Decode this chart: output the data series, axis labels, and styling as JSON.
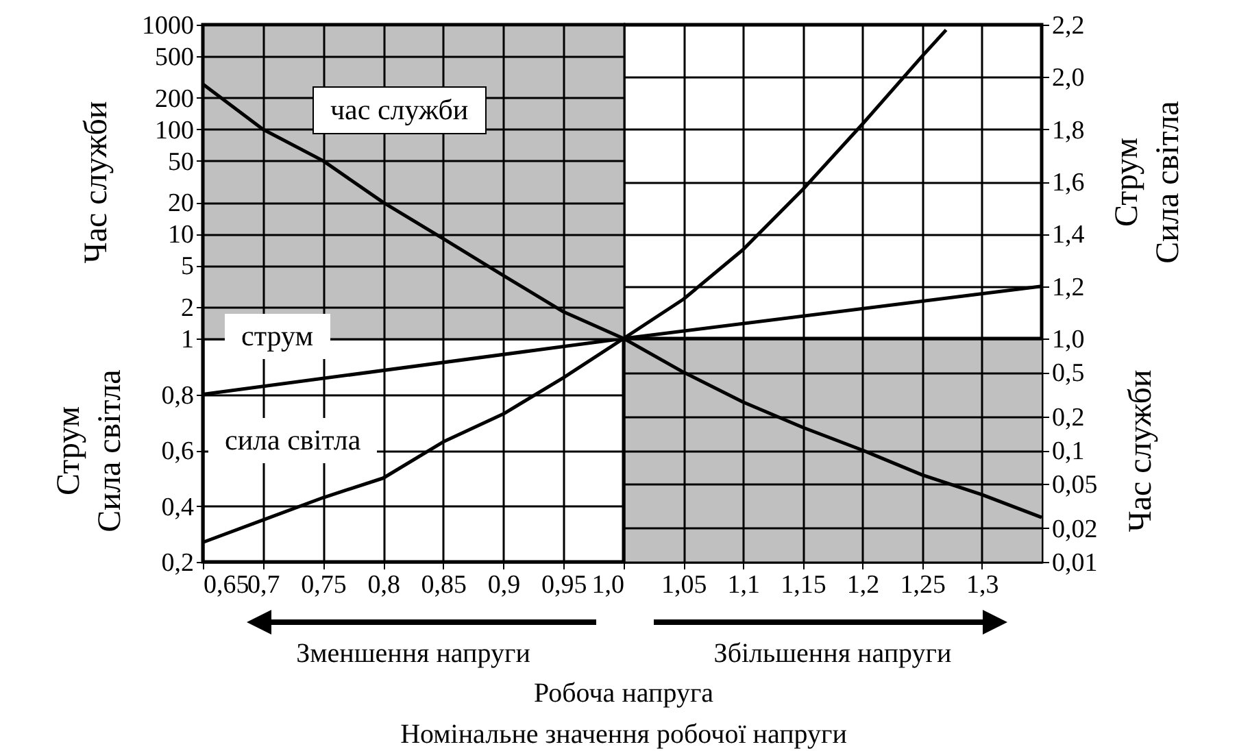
{
  "chart_data": [
    {
      "type": "line",
      "ylabel": "Час служби",
      "xlim": [
        0.65,
        1.0
      ],
      "xticks": [
        0.65,
        0.7,
        0.75,
        0.8,
        0.85,
        0.9,
        0.95,
        1.0
      ],
      "log": "y",
      "ylim": [
        1,
        1000
      ],
      "yticks": [
        1,
        2,
        5,
        10,
        20,
        50,
        100,
        200,
        500,
        1000
      ],
      "grid": true,
      "legend": false,
      "tick_labels": "y",
      "bands": [
        {
          "axis": "x",
          "from": 0.65,
          "to": 1.0,
          "color": "#c0c0c0"
        }
      ],
      "series": [
        {
          "name": "час служби",
          "color": "#000000",
          "x": [
            0.65,
            0.7,
            0.75,
            0.8,
            0.85,
            0.9,
            0.95,
            1.0
          ],
          "values": [
            270,
            100,
            50,
            20,
            9,
            4,
            1.8,
            1
          ]
        }
      ]
    },
    {
      "type": "line",
      "ylabel": "Струм\nСила світла",
      "xlim": [
        1.0,
        1.35
      ],
      "xticks": [
        1.05,
        1.1,
        1.15,
        1.2,
        1.25,
        1.3
      ],
      "ylim": [
        1.0,
        2.2
      ],
      "yticks": [
        {
          "value": 1.0,
          "label": "1,0"
        },
        {
          "value": 1.2,
          "label": "1,2"
        },
        {
          "value": 1.4,
          "label": "1,4"
        },
        {
          "value": 1.6,
          "label": "1,6"
        },
        {
          "value": 1.8,
          "label": "1,8"
        },
        {
          "value": 2.0,
          "label": "2,0"
        },
        {
          "value": 2.2,
          "label": "2,2"
        }
      ],
      "grid": true,
      "legend": false,
      "tick_labels": "y",
      "series": [
        {
          "color": "#000000",
          "x": [
            1.0,
            1.35
          ],
          "values": [
            1.0,
            1.2
          ]
        },
        {
          "color": "#000000",
          "x": [
            1.0,
            1.05,
            1.1,
            1.15,
            1.2,
            1.25,
            1.27
          ],
          "values": [
            1.0,
            1.15,
            1.34,
            1.57,
            1.82,
            2.08,
            2.18
          ]
        }
      ]
    },
    {
      "type": "line",
      "ylabel": "Струм\nСила світла",
      "xlabel": "Робоча напруга",
      "annotations": [
        "Зменшення напруги",
        "Номінальне значення робочої напруги"
      ],
      "xlim": [
        0.65,
        1.0
      ],
      "xticks": [
        {
          "value": 0.65,
          "label": "0,65"
        },
        {
          "value": 0.7,
          "label": "0,7"
        },
        {
          "value": 0.75,
          "label": "0,75"
        },
        {
          "value": 0.8,
          "label": "0,8"
        },
        {
          "value": 0.85,
          "label": "0,85"
        },
        {
          "value": 0.9,
          "label": "0,9"
        },
        {
          "value": 0.95,
          "label": "0,95"
        },
        {
          "value": 1.0,
          "label": "1,0"
        }
      ],
      "ylim": [
        0.2,
        1.0
      ],
      "yticks": [
        {
          "value": 0.2,
          "label": "0,2"
        },
        {
          "value": 0.4,
          "label": "0,4"
        },
        {
          "value": 0.6,
          "label": "0,6"
        },
        {
          "value": 0.8,
          "label": "0,8"
        }
      ],
      "grid": true,
      "legend": false,
      "series": [
        {
          "name": "струм",
          "color": "#000000",
          "x": [
            0.65,
            1.0
          ],
          "values": [
            0.8,
            1.0
          ]
        },
        {
          "name": "сила світла",
          "color": "#000000",
          "x": [
            0.65,
            0.7,
            0.75,
            0.8,
            0.85,
            0.9,
            0.95,
            1.0
          ],
          "values": [
            0.27,
            0.35,
            0.43,
            0.5,
            0.63,
            0.73,
            0.86,
            1.0
          ]
        }
      ]
    },
    {
      "type": "line",
      "ylabel": "Час служби",
      "annotations": [
        "Збільшення напруги"
      ],
      "xlim": [
        1.0,
        1.35
      ],
      "xticks": [
        {
          "value": 1.05,
          "label": "1,05"
        },
        {
          "value": 1.1,
          "label": "1,1"
        },
        {
          "value": 1.15,
          "label": "1,15"
        },
        {
          "value": 1.2,
          "label": "1,2"
        },
        {
          "value": 1.25,
          "label": "1,25"
        },
        {
          "value": 1.3,
          "label": "1,3"
        }
      ],
      "log": "y",
      "ylim": [
        0.01,
        1.0
      ],
      "yticks": [
        {
          "value": 0.01,
          "label": "0,01"
        },
        {
          "value": 0.02,
          "label": "0,02"
        },
        {
          "value": 0.05,
          "label": "0,05"
        },
        {
          "value": 0.1,
          "label": "0,1"
        },
        {
          "value": 0.2,
          "label": "0,2"
        },
        {
          "value": 0.5,
          "label": "0,5"
        }
      ],
      "grid": true,
      "legend": false,
      "bands": [
        {
          "axis": "x",
          "from": 1.0,
          "to": 1.35,
          "color": "#c0c0c0"
        }
      ],
      "series": [
        {
          "color": "#000000",
          "x": [
            1.0,
            1.05,
            1.1,
            1.15,
            1.2,
            1.25,
            1.3,
            1.35
          ],
          "values": [
            1.0,
            0.5,
            0.27,
            0.16,
            0.1,
            0.06,
            0.04,
            0.025
          ]
        }
      ]
    }
  ]
}
